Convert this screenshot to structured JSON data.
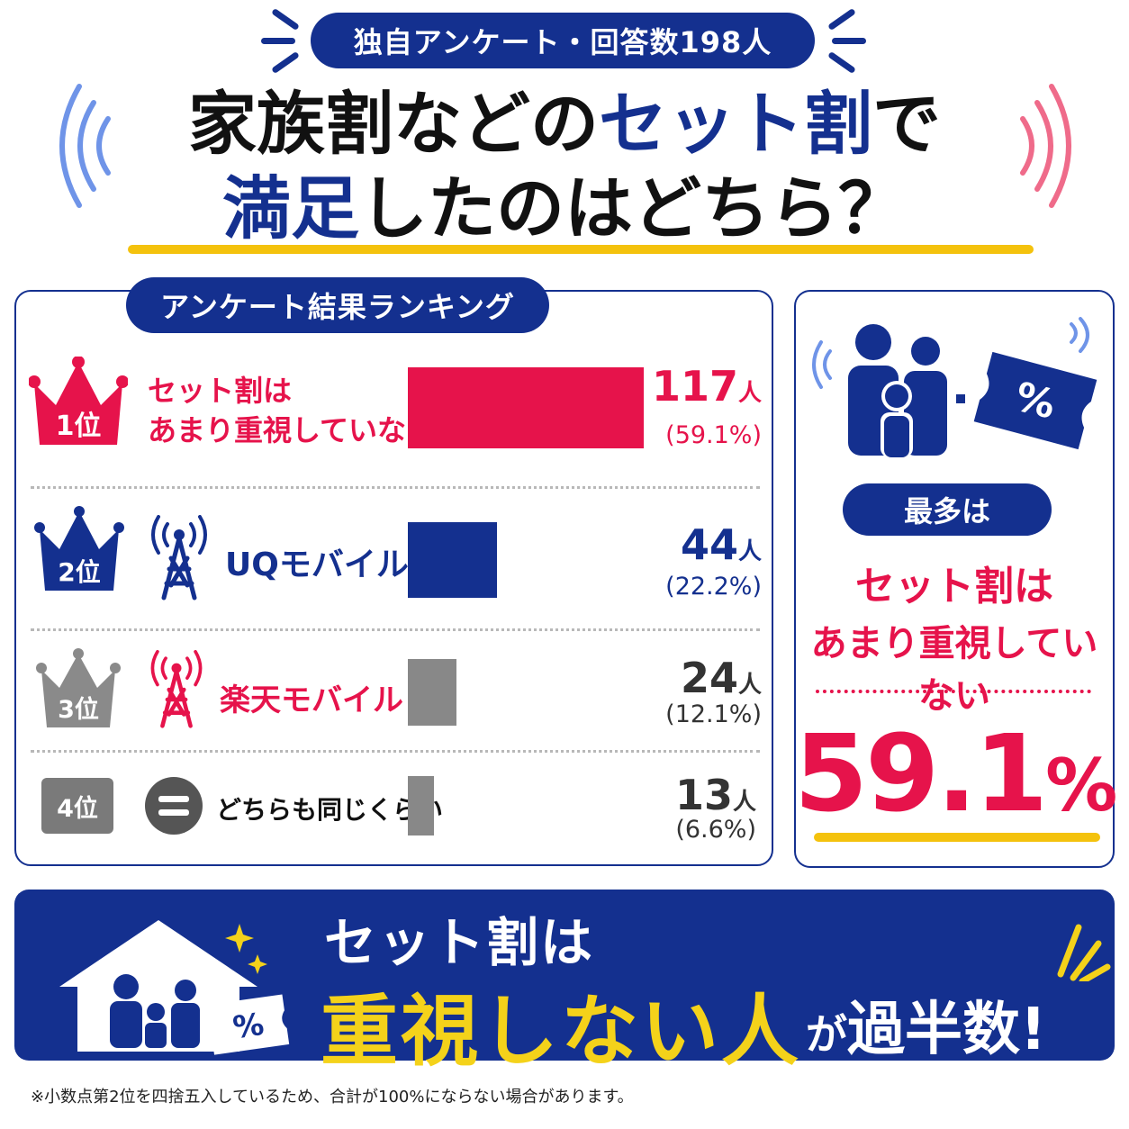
{
  "header": {
    "survey_label": "独自アンケート・回答数198人",
    "title_line1_a": "家族割などの",
    "title_line1_b": "セット割",
    "title_line1_c": "で",
    "title_line2_a": "満足",
    "title_line2_b": "したのはどちら？"
  },
  "ranking": {
    "section_title": "アンケート結果ランキング",
    "rows": [
      {
        "rank": "1位",
        "label_line1": "セット割は",
        "label_line2": "あまり重視していない",
        "count": "117",
        "unit": "人",
        "percent": "(59.1%)",
        "color": "#e6134b",
        "icon": "none"
      },
      {
        "rank": "2位",
        "label_line1": "UQモバイル",
        "count": "44",
        "unit": "人",
        "percent": "(22.2%)",
        "color": "#14308f",
        "icon": "antenna-icon"
      },
      {
        "rank": "3位",
        "label_line1": "楽天モバイル",
        "count": "24",
        "unit": "人",
        "percent": "(12.1%)",
        "color": "#888888",
        "icon": "antenna-icon"
      },
      {
        "rank": "4位",
        "label_line1": "どちらも同じくらい",
        "count": "13",
        "unit": "人",
        "percent": "(6.6%)",
        "color": "#888888",
        "icon": "equal-icon"
      }
    ]
  },
  "chart_data": {
    "type": "bar",
    "orientation": "horizontal",
    "categories": [
      "セット割はあまり重視していない",
      "UQモバイル",
      "楽天モバイル",
      "どちらも同じくらい"
    ],
    "values": [
      117,
      44,
      24,
      13
    ],
    "percentages": [
      59.1,
      22.2,
      12.1,
      6.6
    ],
    "unit": "人",
    "total": 198,
    "colors": [
      "#e6134b",
      "#14308f",
      "#888888",
      "#888888"
    ]
  },
  "summary": {
    "most_label": "最多は",
    "line1": "セット割は",
    "line2": "あまり重視していない",
    "big_value": "59.1",
    "big_unit": "%",
    "ticket_symbol": "%"
  },
  "banner": {
    "line1": "セット割は",
    "line2": "重視しない人",
    "line3_ga": "が",
    "line3": "過半数!",
    "ticket_symbol": "%"
  },
  "footnote": "※小数点第2位を四捨五入しているため、合計が100%にならない場合があります。"
}
